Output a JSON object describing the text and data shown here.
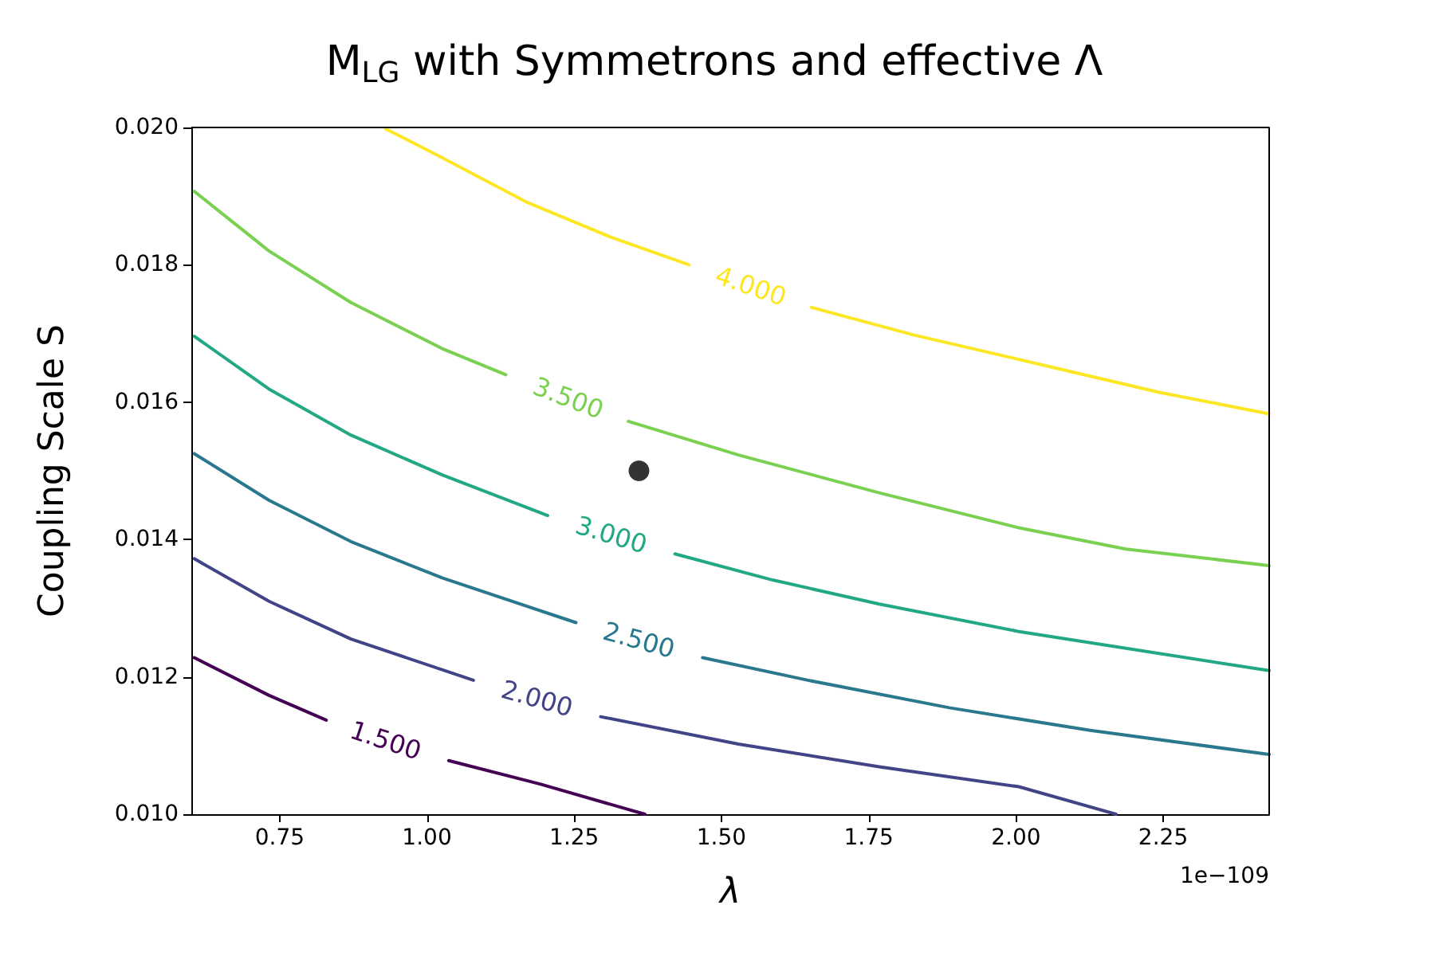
{
  "chart_data": {
    "type": "line",
    "title": "M$_{LG}$ with Symmetrons and effective Λ",
    "xlabel": "λ",
    "ylabel": "Coupling Scale S",
    "annotations": [
      "1e−109"
    ],
    "xlim": [
      0.6,
      2.43
    ],
    "ylim": [
      0.01,
      0.02
    ],
    "xticks": [
      {
        "value": 0.75,
        "label": "0.75"
      },
      {
        "value": 1,
        "label": "1.00"
      },
      {
        "value": 1.25,
        "label": "1.25"
      },
      {
        "value": 1.5,
        "label": "1.50"
      },
      {
        "value": 1.75,
        "label": "1.75"
      },
      {
        "value": 2,
        "label": "2.00"
      },
      {
        "value": 2.25,
        "label": "2.25"
      }
    ],
    "yticks": [
      {
        "value": 0.01,
        "label": "0.010"
      },
      {
        "value": 0.012,
        "label": "0.012"
      },
      {
        "value": 0.014,
        "label": "0.014"
      },
      {
        "value": 0.016,
        "label": "0.016"
      },
      {
        "value": 0.018,
        "label": "0.018"
      },
      {
        "value": 0.02,
        "label": "0.020"
      }
    ],
    "grid": false,
    "legend": false,
    "marker": "none",
    "line_style": "solid",
    "series": [
      {
        "name": "1.500",
        "color": "#440154",
        "x": [
          0.605,
          0.732,
          0.829,
          0.93,
          1.037,
          1.192,
          1.37
        ],
        "values": [
          0.01228,
          0.01173,
          0.01137,
          null,
          0.01078,
          0.01044,
          0.01
        ]
      },
      {
        "name": "2.000",
        "color": "#414487",
        "x": [
          0.605,
          0.732,
          0.871,
          1.079,
          1.187,
          1.295,
          1.529,
          1.768,
          2.005,
          2.17
        ],
        "values": [
          0.01372,
          0.0131,
          0.01255,
          0.01195,
          null,
          0.01142,
          0.01102,
          0.01069,
          0.0104,
          0.01
        ]
      },
      {
        "name": "2.500",
        "color": "#2a788e",
        "x": [
          0.605,
          0.732,
          0.871,
          1.026,
          1.253,
          1.36,
          1.468,
          1.647,
          1.887,
          2.126,
          2.43
        ],
        "values": [
          0.01525,
          0.01457,
          0.01397,
          0.01344,
          0.01279,
          null,
          0.01228,
          0.01195,
          0.01155,
          0.01122,
          0.01087
        ]
      },
      {
        "name": "3.000",
        "color": "#22a884",
        "x": [
          0.605,
          0.732,
          0.871,
          1.026,
          1.205,
          1.313,
          1.421,
          1.587,
          1.768,
          2.005,
          2.43
        ],
        "values": [
          0.01696,
          0.01619,
          0.01552,
          0.01494,
          0.01435,
          null,
          0.01379,
          0.01341,
          0.01306,
          0.01266,
          0.01209
        ]
      },
      {
        "name": "3.500",
        "color": "#7ad151",
        "x": [
          0.605,
          0.732,
          0.871,
          1.026,
          1.134,
          1.24,
          1.342,
          1.529,
          1.768,
          2.005,
          2.187,
          2.43
        ],
        "values": [
          0.01907,
          0.0182,
          0.01745,
          0.01678,
          0.0164,
          null,
          0.01572,
          0.01523,
          0.01468,
          0.01417,
          0.01386,
          0.01362
        ]
      },
      {
        "name": "4.000",
        "color": "#fde725",
        "x": [
          0.93,
          1.026,
          1.17,
          1.313,
          1.445,
          1.55,
          1.653,
          1.826,
          2.066,
          2.245,
          2.43
        ],
        "values": [
          0.01998,
          0.01956,
          0.01891,
          0.0184,
          0.018,
          null,
          0.01738,
          0.01698,
          0.0165,
          0.01614,
          0.01583
        ]
      },
      {
        "type": "scatter",
        "color": "#000000",
        "marker": "circle",
        "x": [
          1.36
        ],
        "values": [
          0.015
        ]
      }
    ]
  }
}
